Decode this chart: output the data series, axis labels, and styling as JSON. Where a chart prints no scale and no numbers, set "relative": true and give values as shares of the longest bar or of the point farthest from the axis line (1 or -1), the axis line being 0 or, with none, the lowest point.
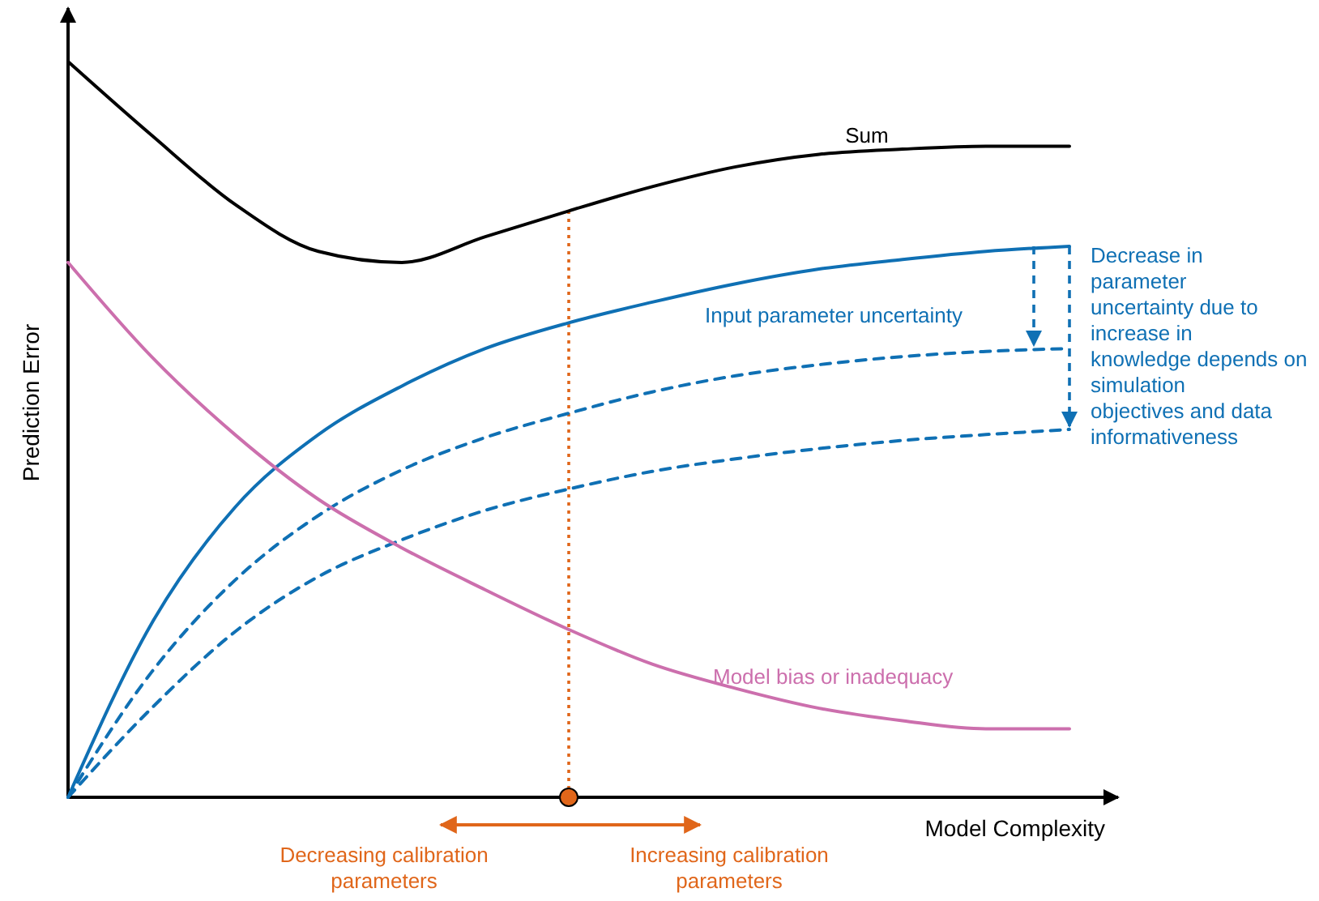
{
  "chart_data": {
    "type": "line",
    "relative": true,
    "xlabel": "Model Complexity",
    "ylabel": "Prediction Error",
    "categories": [
      null,
      null,
      null,
      null,
      null,
      null,
      null,
      null,
      null,
      null,
      null,
      null,
      null
    ],
    "series": [
      {
        "name": "Sum",
        "color": "#000000",
        "line_style": "solid",
        "values": [
          1.0,
          0.9,
          0.806,
          0.742,
          0.727,
          0.762,
          0.797,
          0.83,
          0.857,
          0.874,
          0.881,
          0.885,
          0.885
        ]
      },
      {
        "name": "Input parameter uncertainty",
        "color": "#0f70b4",
        "line_style": "solid",
        "values": [
          0,
          0.236,
          0.394,
          0.493,
          0.559,
          0.61,
          0.645,
          0.673,
          0.698,
          0.718,
          0.731,
          0.742,
          0.749
        ]
      },
      {
        "color": "#0f70b4",
        "line_style": "dashed",
        "values": [
          0,
          0.17,
          0.295,
          0.383,
          0.445,
          0.489,
          0.522,
          0.551,
          0.573,
          0.588,
          0.599,
          0.606,
          0.61
        ]
      },
      {
        "color": "#0f70b4",
        "line_style": "dashed",
        "values": [
          0,
          0.121,
          0.225,
          0.3,
          0.35,
          0.39,
          0.419,
          0.443,
          0.46,
          0.474,
          0.485,
          0.493,
          0.5
        ]
      },
      {
        "name": "Model bias or inadequacy",
        "color": "#cc6fad",
        "line_style": "solid",
        "values": [
          0.727,
          0.599,
          0.493,
          0.405,
          0.339,
          0.282,
          0.228,
          0.181,
          0.148,
          0.121,
          0.104,
          0.093,
          0.093
        ]
      }
    ],
    "annotations": [
      "Decreasing calibration parameters",
      "Increasing calibration parameters",
      "Decrease in parameter uncertainty due to increase in knowledge depends on simulation objectives and data informativeness"
    ]
  }
}
